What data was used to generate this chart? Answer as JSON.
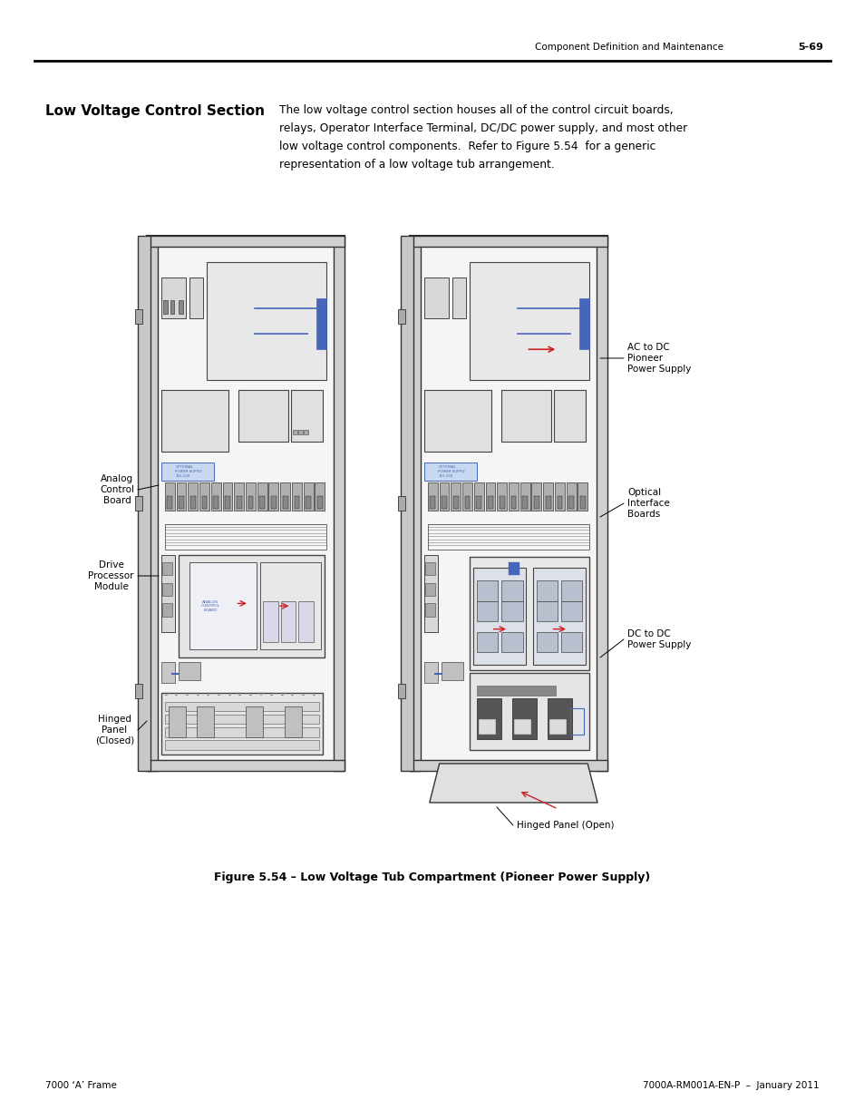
{
  "page_header_left": "Component Definition and Maintenance",
  "page_header_right": "5-69",
  "section_title": "Low Voltage Control Section",
  "body_text_lines": [
    "The low voltage control section houses all of the control circuit boards,",
    "relays, Operator Interface Terminal, DC/DC power supply, and most other",
    "low voltage control components.  Refer to Figure 5.54  for a generic",
    "representation of a low voltage tub arrangement."
  ],
  "figure_caption": "Figure 5.54 – Low Voltage Tub Compartment (Pioneer Power Supply)",
  "footer_left": "7000 ‘A’ Frame",
  "footer_right": "7000A-RM001A-EN-P  –  January 2011",
  "bg_color": "#ffffff",
  "text_color": "#000000",
  "line_color": "#333333",
  "blue_color": "#4466bb",
  "gray_light": "#e8e8e8",
  "gray_mid": "#cccccc",
  "gray_dark": "#888888"
}
